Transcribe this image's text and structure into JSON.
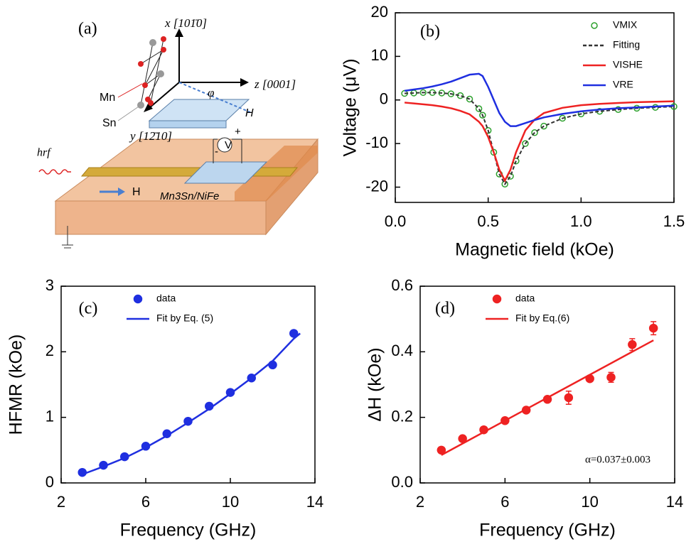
{
  "diagram": {
    "texts": [
      "(a)",
      "x [101̄0]",
      "z [0001]",
      "y [12̄10]",
      "φ",
      "H",
      "Mn",
      "Sn",
      "hrf",
      "V",
      "+",
      "-",
      "H",
      "Mn3Sn/NiFe"
    ]
  },
  "chart_data": [
    {
      "type": "line",
      "panel_label": "(b)",
      "xlabel": "Magnetic field (kOe)",
      "ylabel": "Voltage (μV)",
      "xlim": [
        0,
        1.5
      ],
      "ylim": [
        -23.5,
        20
      ],
      "xticks": [
        {
          "value": 0,
          "label": "0.0"
        },
        {
          "value": 0.5,
          "label": "0.5"
        },
        {
          "value": 1,
          "label": "1.0"
        },
        {
          "value": 1.5,
          "label": "1.5"
        }
      ],
      "yticks": [
        -20,
        -10,
        0,
        10,
        20
      ],
      "legend": "upper right",
      "series": [
        {
          "name": "VMIX",
          "style": "circles",
          "color": "#2ca02c",
          "x": [
            0.05,
            0.1,
            0.15,
            0.2,
            0.25,
            0.3,
            0.35,
            0.4,
            0.45,
            0.47,
            0.5,
            0.53,
            0.56,
            0.59,
            0.62,
            0.65,
            0.7,
            0.75,
            0.8,
            0.9,
            1.0,
            1.1,
            1.2,
            1.3,
            1.4,
            1.5
          ],
          "values": [
            1.5,
            1.6,
            1.7,
            1.7,
            1.6,
            1.4,
            1.0,
            0.2,
            -2,
            -3.5,
            -7,
            -12,
            -17,
            -19.3,
            -17.5,
            -14,
            -10,
            -7.5,
            -6,
            -4.2,
            -3.2,
            -2.6,
            -2.2,
            -1.9,
            -1.7,
            -1.5
          ]
        },
        {
          "name": "Fitting",
          "style": "dashed",
          "color": "#333333",
          "x": [
            0.05,
            0.1,
            0.15,
            0.2,
            0.25,
            0.3,
            0.35,
            0.4,
            0.45,
            0.47,
            0.5,
            0.53,
            0.56,
            0.59,
            0.62,
            0.65,
            0.7,
            0.75,
            0.8,
            0.9,
            1.0,
            1.1,
            1.2,
            1.3,
            1.4,
            1.5
          ],
          "values": [
            1.5,
            1.6,
            1.7,
            1.7,
            1.6,
            1.4,
            1.0,
            0.2,
            -2,
            -3.5,
            -7,
            -12,
            -17,
            -19.3,
            -17.5,
            -14,
            -10,
            -7.5,
            -6,
            -4.2,
            -3.2,
            -2.6,
            -2.2,
            -1.9,
            -1.7,
            -1.5
          ]
        },
        {
          "name": "VISHE",
          "style": "solid",
          "color": "#ee2222",
          "x": [
            0.05,
            0.1,
            0.15,
            0.2,
            0.25,
            0.3,
            0.35,
            0.4,
            0.45,
            0.47,
            0.5,
            0.53,
            0.56,
            0.59,
            0.62,
            0.65,
            0.7,
            0.75,
            0.8,
            0.9,
            1.0,
            1.1,
            1.2,
            1.3,
            1.4,
            1.5
          ],
          "values": [
            -0.6,
            -0.8,
            -1,
            -1.2,
            -1.5,
            -1.9,
            -2.5,
            -3.3,
            -5,
            -6,
            -8.5,
            -12,
            -16,
            -18.5,
            -16,
            -12,
            -7,
            -4.5,
            -3,
            -1.8,
            -1.2,
            -0.9,
            -0.7,
            -0.5,
            -0.4,
            -0.3
          ]
        },
        {
          "name": "VRE",
          "style": "solid",
          "color": "#1f2fe0",
          "x": [
            0.05,
            0.1,
            0.15,
            0.2,
            0.25,
            0.3,
            0.35,
            0.4,
            0.45,
            0.47,
            0.5,
            0.53,
            0.56,
            0.59,
            0.62,
            0.65,
            0.7,
            0.75,
            0.8,
            0.9,
            1.0,
            1.1,
            1.2,
            1.3,
            1.4,
            1.5
          ],
          "values": [
            2.1,
            2.4,
            2.7,
            3.1,
            3.6,
            4.2,
            5,
            5.8,
            6,
            5.5,
            3,
            0,
            -3,
            -5,
            -6,
            -6,
            -5.3,
            -4.6,
            -4,
            -3.2,
            -2.6,
            -2.2,
            -1.9,
            -1.7,
            -1.5,
            -1.3
          ]
        }
      ]
    },
    {
      "type": "scatter",
      "panel_label": "(c)",
      "xlabel": "Frequency (GHz)",
      "ylabel": "HFMR (kOe)",
      "xlim": [
        2,
        14
      ],
      "ylim": [
        0,
        3
      ],
      "xticks": [
        2,
        6,
        10,
        14
      ],
      "yticks": [
        0,
        1,
        2,
        3
      ],
      "legend": "upper left",
      "series": [
        {
          "name": "data",
          "style": "dots",
          "color": "#1f2fe0",
          "x": [
            3,
            4,
            5,
            6,
            7,
            8,
            9,
            10,
            11,
            12,
            13
          ],
          "values": [
            0.16,
            0.27,
            0.4,
            0.56,
            0.75,
            0.94,
            1.17,
            1.38,
            1.6,
            1.8,
            2.28
          ]
        },
        {
          "name": "Fit by Eq. (5)",
          "style": "solid",
          "color": "#1f2fe0",
          "x": [
            3,
            4,
            5,
            6,
            7,
            8,
            9,
            10,
            11,
            12,
            13,
            13.3
          ],
          "values": [
            0.13,
            0.25,
            0.38,
            0.54,
            0.72,
            0.92,
            1.13,
            1.36,
            1.6,
            1.86,
            2.2,
            2.28
          ]
        }
      ]
    },
    {
      "type": "scatter",
      "panel_label": "(d)",
      "xlabel": "Frequency (GHz)",
      "ylabel": "ΔH (kOe)",
      "xlim": [
        2,
        14
      ],
      "ylim": [
        0,
        0.6
      ],
      "xticks": [
        2,
        6,
        10,
        14
      ],
      "yticks": [
        {
          "value": 0,
          "label": "0.0"
        },
        0.2,
        0.4,
        0.6
      ],
      "legend": "upper left",
      "annotation": "α=0.037±0.003",
      "series": [
        {
          "name": "data",
          "style": "dots",
          "color": "#ee2222",
          "x": [
            3,
            4,
            5,
            6,
            7,
            8,
            9,
            10,
            11,
            12,
            13
          ],
          "values": [
            0.1,
            0.135,
            0.162,
            0.19,
            0.222,
            0.255,
            0.26,
            0.318,
            0.322,
            0.422,
            0.472
          ],
          "errors": [
            0.005,
            0.005,
            0.005,
            0.005,
            0.005,
            0.006,
            0.02,
            0.008,
            0.015,
            0.018,
            0.02
          ]
        },
        {
          "name": "Fit by Eq.(6)",
          "style": "solid",
          "color": "#ee2222",
          "x": [
            3,
            13
          ],
          "values": [
            0.085,
            0.435
          ]
        }
      ]
    }
  ]
}
